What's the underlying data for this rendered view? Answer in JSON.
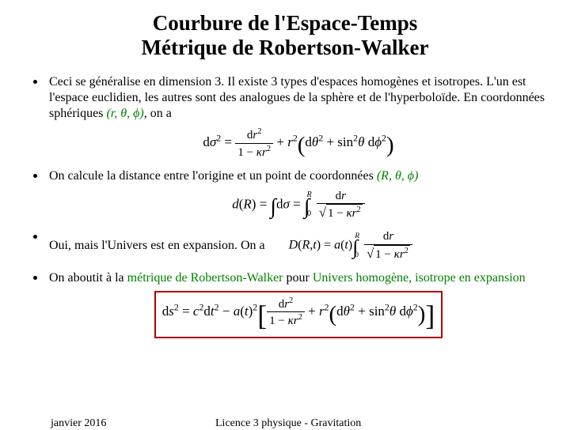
{
  "title_line1": "Courbure de l'Espace-Temps",
  "title_line2": "Métrique de Robertson-Walker",
  "bullet1": {
    "text_pre": "Ceci se généralise en dimension 3. Il existe 3 types d'espaces homogènes et isotropes. L'un est l'espace euclidien, les autres sont des analogues de la sphère et de l'hyperboloïde. En coordonnées sphériques ",
    "coords": "(r, θ, ϕ)",
    "text_post": ", on a"
  },
  "formula1": "dσ² = dr²/(1−κr²) + r²(dθ² + sin²θ dϕ²)",
  "bullet2": {
    "text_pre": "On calcule la distance entre l'origine et un point de coordonnées ",
    "coords": "(R, θ, ϕ)"
  },
  "formula2": "d(R) = ∫dσ = ∫₀ᴿ dr/√(1−κr²)",
  "bullet3": {
    "text": "Oui, mais l'Univers est en expansion. On a"
  },
  "formula3": "D(R,t) = a(t) ∫₀ᴿ dr/√(1−κr²)",
  "bullet4": {
    "text_pre": "On aboutit à la ",
    "term1": "métrique de Robertson-Walker",
    "text_mid": " pour ",
    "term2": "Univers homogène, isotrope en expansion"
  },
  "formula4": "ds² = c²dt² − a(t)²[dr²/(1−κr²) + r²(dθ² + sin²θ dϕ²)]",
  "footer": {
    "date": "janvier 2016",
    "course": "Licence 3 physique - Gravitation"
  },
  "styling": {
    "background_color": "#ffffff",
    "text_color": "#000000",
    "accent_color": "#008000",
    "box_border_color": "#b00000",
    "title_fontsize": 27,
    "body_fontsize": 16,
    "formula_fontsize": 17,
    "footer_fontsize": 14,
    "font_family": "Times New Roman"
  }
}
